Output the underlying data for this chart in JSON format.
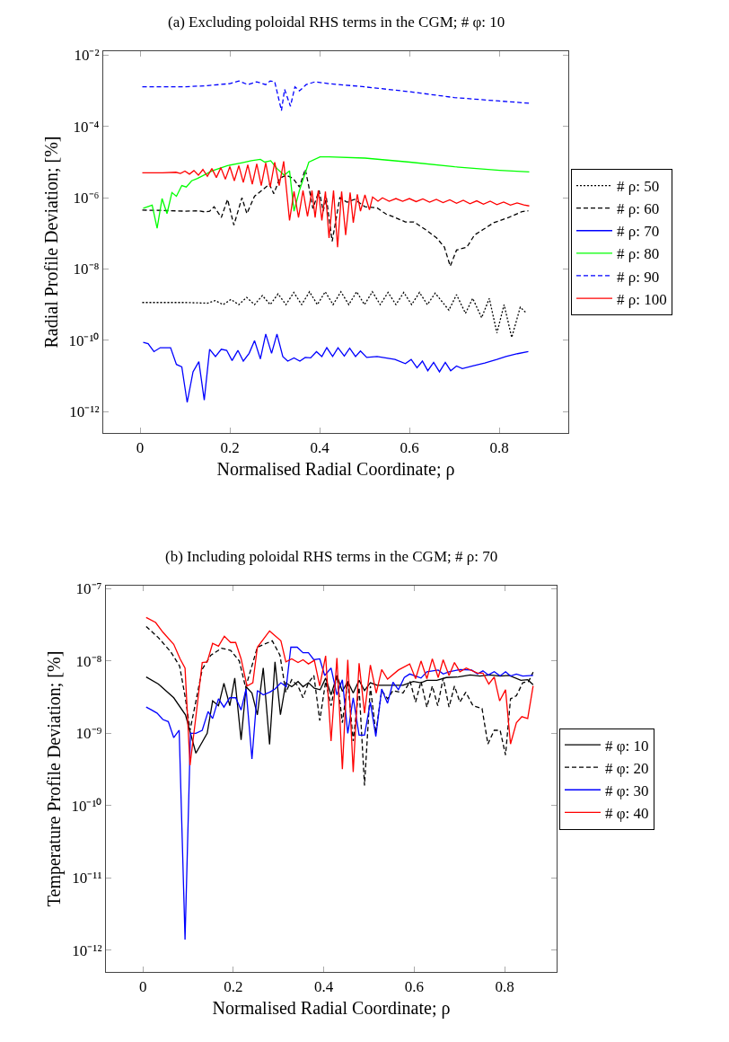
{
  "chart_data": [
    {
      "type": "line",
      "title": "(a) Excluding poloidal RHS terms in the CGM; # φ: 10",
      "xlabel": "Normalised Radial Coordinate; ρ",
      "ylabel": "Radial Profile Deviation; [%]",
      "log": "y",
      "legend": "right",
      "xlim": [
        -0.082,
        0.954
      ],
      "ylim": [
        2.5e-13,
        0.013
      ],
      "xticks": [
        0,
        0.2,
        0.4,
        0.6,
        0.8
      ],
      "yticks": [
        {
          "value": 1e-12,
          "label": "10⁻¹²"
        },
        {
          "value": 1e-10,
          "label": "10⁻¹⁰"
        },
        {
          "value": 1e-08,
          "label": "10⁻⁸"
        },
        {
          "value": 1e-06,
          "label": "10⁻⁶"
        },
        {
          "value": 0.0001,
          "label": "10⁻⁴"
        },
        {
          "value": 0.01,
          "label": "10⁻²"
        }
      ],
      "series": [
        {
          "name": "# ρ: 50",
          "color": "#000000",
          "line_style": "dotted",
          "x": [
            0.005,
            0.05,
            0.1,
            0.15,
            0.1675,
            0.185,
            0.2025,
            0.22,
            0.2375,
            0.255,
            0.2725,
            0.29,
            0.3075,
            0.325,
            0.3425,
            0.36,
            0.3775,
            0.395,
            0.4125,
            0.43,
            0.4475,
            0.465,
            0.4825,
            0.5,
            0.5175,
            0.535,
            0.5525,
            0.57,
            0.5875,
            0.605,
            0.6225,
            0.64,
            0.6575,
            0.688,
            0.705,
            0.725,
            0.741,
            0.761,
            0.778,
            0.795,
            0.811,
            0.828,
            0.847,
            0.86
          ],
          "values": [
            1.15e-09,
            1.15e-09,
            1.15e-09,
            1.1e-09,
            1.3e-09,
            1e-09,
            1.4e-09,
            1e-09,
            1.6e-09,
            1e-09,
            1.8e-09,
            1e-09,
            2e-09,
            1e-09,
            2.2e-09,
            1e-09,
            2.3e-09,
            1e-09,
            2.3e-09,
            1e-09,
            2.3e-09,
            1e-09,
            2.3e-09,
            1e-09,
            2.3e-09,
            1e-09,
            2.2e-09,
            1e-09,
            2.2e-09,
            1e-09,
            2.2e-09,
            1e-09,
            2.1e-09,
            7e-10,
            1.9e-09,
            5.7e-10,
            1.5e-09,
            4.3e-10,
            1.5e-09,
            1.6e-10,
            1e-09,
            1.2e-10,
            8.5e-10,
            5.9e-10
          ]
        },
        {
          "name": "# ρ: 60",
          "color": "#000000",
          "line_style": "dashed",
          "x": [
            0.005,
            0.05,
            0.1,
            0.13,
            0.145,
            0.155,
            0.165,
            0.181,
            0.195,
            0.209,
            0.227,
            0.238,
            0.255,
            0.271,
            0.288,
            0.298,
            0.311,
            0.325,
            0.341,
            0.355,
            0.368,
            0.375,
            0.385,
            0.399,
            0.408,
            0.415,
            0.428,
            0.445,
            0.461,
            0.478,
            0.501,
            0.528,
            0.548,
            0.568,
            0.591,
            0.61,
            0.635,
            0.661,
            0.678,
            0.691,
            0.705,
            0.728,
            0.745,
            0.765,
            0.788,
            0.821,
            0.851,
            0.865
          ],
          "values": [
            4.5e-07,
            4.4e-07,
            4.2e-07,
            4.3e-07,
            4e-07,
            4.2e-07,
            5.6e-07,
            2.8e-07,
            9e-07,
            1.7e-07,
            1e-06,
            3.6e-07,
            1.1e-06,
            1.6e-06,
            2.4e-06,
            1.3e-06,
            3.5e-06,
            4.3e-06,
            3.5e-06,
            2e-06,
            6.3e-06,
            2.4e-06,
            5e-07,
            1.6e-06,
            4.2e-07,
            1e-06,
            6e-08,
            1e-06,
            7.5e-07,
            9e-07,
            5.6e-07,
            5.2e-07,
            3.5e-07,
            2.8e-07,
            2.1e-07,
            2.1e-07,
            1.3e-07,
            7.4e-08,
            4.1e-08,
            1.2e-08,
            3.4e-08,
            4.1e-08,
            9e-08,
            1.3e-07,
            2e-07,
            2.8e-07,
            4.1e-07,
            4.3e-07
          ]
        },
        {
          "name": "# ρ: 70",
          "color": "#0000ff",
          "line_style": "solid",
          "x": [
            0.007,
            0.018,
            0.031,
            0.045,
            0.068,
            0.081,
            0.093,
            0.105,
            0.118,
            0.131,
            0.143,
            0.155,
            0.168,
            0.181,
            0.193,
            0.205,
            0.218,
            0.23,
            0.243,
            0.255,
            0.268,
            0.28,
            0.293,
            0.305,
            0.318,
            0.329,
            0.343,
            0.356,
            0.368,
            0.38,
            0.393,
            0.405,
            0.416,
            0.429,
            0.441,
            0.455,
            0.467,
            0.48,
            0.491,
            0.505,
            0.528,
            0.568,
            0.591,
            0.604,
            0.617,
            0.629,
            0.641,
            0.654,
            0.667,
            0.68,
            0.692,
            0.705,
            0.718,
            0.741,
            0.768,
            0.795,
            0.815,
            0.841,
            0.865
          ],
          "values": [
            8.7e-11,
            8e-11,
            4.8e-11,
            6.2e-11,
            6.2e-11,
            2.1e-11,
            1.8e-11,
            1.8e-12,
            1.3e-11,
            2.5e-11,
            2.1e-12,
            5.6e-11,
            3.5e-11,
            5.6e-11,
            5.2e-11,
            2.7e-11,
            5.2e-11,
            2.6e-11,
            4.3e-11,
            9.8e-11,
            3e-11,
            1.5e-10,
            4.3e-11,
            1.5e-10,
            3.5e-11,
            2.6e-11,
            3.2e-11,
            2.6e-11,
            3.3e-11,
            3.2e-11,
            4.8e-11,
            3.5e-11,
            6.2e-11,
            3.5e-11,
            6.2e-11,
            3.6e-11,
            6e-11,
            3.5e-11,
            5e-11,
            3.3e-11,
            3.5e-11,
            2.9e-11,
            2.2e-11,
            2.9e-11,
            1.7e-11,
            2.6e-11,
            1.4e-11,
            2.4e-11,
            1.3e-11,
            2.4e-11,
            1.4e-11,
            1.9e-11,
            1.6e-11,
            1.9e-11,
            2.3e-11,
            2.9e-11,
            3.5e-11,
            4.2e-11,
            4.8e-11
          ]
        },
        {
          "name": "# ρ: 80",
          "color": "#00ff00",
          "line_style": "solid",
          "x": [
            0.007,
            0.027,
            0.038,
            0.049,
            0.06,
            0.071,
            0.081,
            0.093,
            0.103,
            0.115,
            0.128,
            0.161,
            0.195,
            0.228,
            0.248,
            0.268,
            0.278,
            0.291,
            0.305,
            0.321,
            0.333,
            0.343,
            0.355,
            0.376,
            0.401,
            0.421,
            0.501,
            0.601,
            0.701,
            0.801,
            0.867
          ],
          "values": [
            5.1e-07,
            6.2e-07,
            1.4e-07,
            9.5e-07,
            3.6e-07,
            1.4e-06,
            1.1e-06,
            2.2e-06,
            2e-06,
            3e-06,
            3.5e-06,
            5.7e-06,
            8e-06,
            9.7e-06,
            1.1e-05,
            1.2e-05,
            1e-05,
            1.1e-05,
            6.6e-06,
            4.3e-06,
            5.7e-06,
            4.2e-07,
            1.6e-06,
            1e-05,
            1.4e-05,
            1.4e-05,
            1.3e-05,
            1e-05,
            7.4e-06,
            5.9e-06,
            5.3e-06
          ]
        },
        {
          "name": "# ρ: 90",
          "color": "#0000ff",
          "line_style": "dashed",
          "x": [
            0.005,
            0.1,
            0.15,
            0.2,
            0.22,
            0.24,
            0.26,
            0.28,
            0.29,
            0.3,
            0.315,
            0.322,
            0.335,
            0.345,
            0.355,
            0.37,
            0.39,
            0.42,
            0.5,
            0.6,
            0.7,
            0.8,
            0.867
          ],
          "values": [
            0.0013,
            0.0013,
            0.0014,
            0.0016,
            0.0019,
            0.0015,
            0.0018,
            0.0015,
            0.0019,
            0.0018,
            0.00028,
            0.0011,
            0.00037,
            0.0013,
            0.001,
            0.0015,
            0.0018,
            0.0016,
            0.0013,
            0.00095,
            0.00065,
            0.00052,
            0.00045
          ]
        },
        {
          "name": "# ρ: 100",
          "color": "#ff0000",
          "line_style": "solid",
          "x": [
            0.005,
            0.05,
            0.08,
            0.09,
            0.1,
            0.11,
            0.12,
            0.13,
            0.14,
            0.15,
            0.16,
            0.17,
            0.18,
            0.19,
            0.2,
            0.21,
            0.22,
            0.23,
            0.24,
            0.25,
            0.26,
            0.27,
            0.28,
            0.29,
            0.3,
            0.31,
            0.32,
            0.333,
            0.343,
            0.353,
            0.363,
            0.373,
            0.383,
            0.39,
            0.397,
            0.405,
            0.413,
            0.421,
            0.431,
            0.44,
            0.449,
            0.458,
            0.468,
            0.475,
            0.484,
            0.491,
            0.501,
            0.511,
            0.518,
            0.53,
            0.54,
            0.555,
            0.57,
            0.585,
            0.6,
            0.615,
            0.63,
            0.645,
            0.66,
            0.675,
            0.69,
            0.705,
            0.72,
            0.735,
            0.75,
            0.765,
            0.78,
            0.795,
            0.81,
            0.825,
            0.84,
            0.855,
            0.867
          ],
          "values": [
            5e-06,
            5e-06,
            5.2e-06,
            4.8e-06,
            5.6e-06,
            4.6e-06,
            5.8e-06,
            4.3e-06,
            6.2e-06,
            4e-06,
            6.6e-06,
            3.7e-06,
            7e-06,
            3.3e-06,
            7.5e-06,
            3e-06,
            8e-06,
            2.7e-06,
            8.5e-06,
            2.4e-06,
            9e-06,
            2.2e-06,
            9.5e-06,
            2e-06,
            1e-05,
            2.2e-06,
            1.05e-05,
            2.3e-07,
            1.5e-06,
            2.8e-07,
            1.6e-06,
            3e-07,
            1.6e-06,
            2.8e-07,
            1.6e-06,
            2.3e-07,
            1.5e-06,
            7.4e-08,
            1.6e-06,
            4.1e-08,
            1.5e-06,
            9e-08,
            1.4e-06,
            2e-07,
            1.25e-06,
            4.2e-07,
            1.2e-06,
            4.6e-07,
            1.05e-06,
            8e-07,
            1e-06,
            8e-07,
            9.5e-07,
            8e-07,
            9.5e-07,
            7.8e-07,
            9.3e-07,
            7.5e-07,
            9e-07,
            7.3e-07,
            8.8e-07,
            7e-07,
            8.5e-07,
            6.8e-07,
            8.2e-07,
            6.6e-07,
            8e-07,
            6.4e-07,
            7.6e-07,
            6.2e-07,
            7.2e-07,
            6.3e-07,
            5.9e-07
          ]
        }
      ]
    },
    {
      "type": "line",
      "title": "(b) Including poloidal RHS terms in the CGM; # ρ: 70",
      "xlabel": "Normalised Radial Coordinate; ρ",
      "ylabel": "Temperature Profile Deviation; [%]",
      "log": "y",
      "legend": "right",
      "xlim": [
        -0.082,
        0.915
      ],
      "ylim": [
        5e-13,
        1.1e-07
      ],
      "xticks": [
        0,
        0.2,
        0.4,
        0.6,
        0.8
      ],
      "yticks": [
        {
          "value": 1e-12,
          "label": "10⁻¹²"
        },
        {
          "value": 1e-11,
          "label": "10⁻¹¹"
        },
        {
          "value": 1e-10,
          "label": "10⁻¹⁰"
        },
        {
          "value": 1e-09,
          "label": "10⁻⁹"
        },
        {
          "value": 1e-08,
          "label": "10⁻⁸"
        },
        {
          "value": 1e-07,
          "label": "10⁻⁷"
        }
      ],
      "series": [
        {
          "name": "# φ: 10",
          "color": "#000000",
          "line_style": "solid",
          "x": [
            0.007,
            0.034,
            0.068,
            0.094,
            0.117,
            0.142,
            0.154,
            0.167,
            0.179,
            0.192,
            0.203,
            0.217,
            0.228,
            0.241,
            0.253,
            0.266,
            0.28,
            0.292,
            0.304,
            0.316,
            0.329,
            0.343,
            0.354,
            0.366,
            0.379,
            0.392,
            0.404,
            0.416,
            0.429,
            0.441,
            0.453,
            0.465,
            0.478,
            0.49,
            0.503,
            0.518,
            0.55,
            0.575,
            0.598,
            0.615,
            0.628,
            0.65,
            0.671,
            0.697,
            0.724,
            0.745,
            0.767,
            0.79,
            0.81,
            0.836,
            0.851,
            0.863
          ],
          "values": [
            6e-09,
            4.8e-09,
            3.1e-09,
            1.8e-09,
            5.3e-10,
            1e-09,
            2.8e-09,
            2.4e-09,
            4.9e-09,
            2.4e-09,
            5.8e-09,
            8.1e-10,
            4.4e-09,
            3.6e-09,
            1.8e-09,
            8e-09,
            7e-10,
            9.7e-09,
            1.8e-09,
            5e-09,
            4.4e-09,
            5.2e-09,
            4.4e-09,
            5e-09,
            4.2e-09,
            4e-09,
            5.8e-09,
            3.4e-09,
            6.3e-09,
            3.8e-09,
            5.2e-09,
            3.6e-09,
            5.4e-09,
            3.9e-09,
            5e-09,
            4.6e-09,
            4.6e-09,
            4.6e-09,
            5.2e-09,
            5e-09,
            5.4e-09,
            5.4e-09,
            5.9e-09,
            6e-09,
            6.4e-09,
            6.2e-09,
            6.4e-09,
            6.2e-09,
            6.3e-09,
            5.4e-09,
            5.5e-09,
            4.7e-09
          ]
        },
        {
          "name": "# φ: 20",
          "color": "#000000",
          "line_style": "dashed",
          "x": [
            0.007,
            0.034,
            0.061,
            0.081,
            0.094,
            0.104,
            0.115,
            0.131,
            0.15,
            0.174,
            0.194,
            0.213,
            0.227,
            0.253,
            0.286,
            0.303,
            0.316,
            0.329,
            0.343,
            0.354,
            0.366,
            0.378,
            0.391,
            0.404,
            0.416,
            0.429,
            0.441,
            0.453,
            0.465,
            0.478,
            0.49,
            0.503,
            0.515,
            0.528,
            0.541,
            0.553,
            0.575,
            0.591,
            0.603,
            0.615,
            0.628,
            0.64,
            0.652,
            0.664,
            0.677,
            0.689,
            0.701,
            0.714,
            0.73,
            0.75,
            0.763,
            0.777,
            0.79,
            0.802,
            0.813,
            0.826,
            0.84,
            0.853,
            0.863
          ],
          "values": [
            3e-08,
            2.1e-08,
            1.35e-08,
            8.5e-09,
            3e-09,
            1.1e-09,
            2.4e-09,
            7.7e-09,
            1.2e-08,
            1.5e-08,
            1.4e-08,
            1e-08,
            4.3e-09,
            1.55e-08,
            1.9e-08,
            1.2e-08,
            3.7e-09,
            5.5e-09,
            4.5e-09,
            3.1e-09,
            5e-09,
            6.3e-09,
            1.5e-09,
            5.2e-09,
            2.4e-09,
            6.3e-09,
            1.4e-09,
            5.2e-09,
            7.8e-10,
            4.3e-09,
            1.9e-10,
            4.5e-09,
            1e-09,
            3.9e-09,
            3e-09,
            3.9e-09,
            3.6e-09,
            5.2e-09,
            2.7e-09,
            5.2e-09,
            2.3e-09,
            4.5e-09,
            2.4e-09,
            5.8e-09,
            2.3e-09,
            4.5e-09,
            2.7e-09,
            3.7e-09,
            2.4e-09,
            2.2e-09,
            7.1e-10,
            1.1e-09,
            1.1e-09,
            5e-10,
            3e-09,
            3.3e-09,
            5e-09,
            5.2e-09,
            7e-09
          ]
        },
        {
          "name": "# φ: 30",
          "color": "#0000ff",
          "line_style": "solid",
          "x": [
            0.007,
            0.019,
            0.031,
            0.044,
            0.056,
            0.068,
            0.08,
            0.093,
            0.105,
            0.117,
            0.131,
            0.144,
            0.154,
            0.167,
            0.179,
            0.192,
            0.205,
            0.217,
            0.228,
            0.241,
            0.253,
            0.266,
            0.28,
            0.292,
            0.305,
            0.317,
            0.327,
            0.341,
            0.354,
            0.366,
            0.378,
            0.391,
            0.402,
            0.416,
            0.429,
            0.441,
            0.453,
            0.465,
            0.478,
            0.49,
            0.503,
            0.515,
            0.528,
            0.541,
            0.553,
            0.565,
            0.578,
            0.59,
            0.615,
            0.628,
            0.653,
            0.664,
            0.677,
            0.701,
            0.727,
            0.74,
            0.752,
            0.764,
            0.777,
            0.79,
            0.802,
            0.813,
            0.826,
            0.84,
            0.863
          ],
          "values": [
            2.3e-09,
            2.1e-09,
            1.9e-09,
            1.55e-09,
            1.45e-09,
            8.7e-10,
            1.1e-09,
            1.4e-12,
            1e-09,
            1e-09,
            1.1e-09,
            2e-09,
            1.6e-09,
            3e-09,
            2.3e-09,
            3.1e-09,
            3.1e-09,
            2.1e-09,
            4.1e-09,
            4.4e-10,
            3.9e-09,
            3.4e-09,
            3.7e-09,
            4.1e-09,
            5e-09,
            4.4e-09,
            1.55e-08,
            1.55e-08,
            1.3e-08,
            1.3e-08,
            1.04e-08,
            1.07e-08,
            6.3e-09,
            8e-09,
            3.4e-09,
            5.5e-09,
            1e-09,
            3.1e-09,
            9.4e-10,
            9.4e-10,
            2.7e-09,
            9e-10,
            4.1e-09,
            2.6e-09,
            5.1e-09,
            4e-09,
            5.9e-09,
            6.6e-09,
            5.8e-09,
            7.1e-09,
            7.5e-09,
            6.6e-09,
            7.1e-09,
            7.6e-09,
            7.5e-09,
            6.6e-09,
            7.3e-09,
            6.4e-09,
            7.1e-09,
            6.2e-09,
            7.1e-09,
            6.2e-09,
            6.6e-09,
            6.2e-09,
            6.3e-09
          ]
        },
        {
          "name": "# φ: 40",
          "color": "#ff0000",
          "line_style": "solid",
          "x": [
            0.007,
            0.028,
            0.044,
            0.068,
            0.082,
            0.093,
            0.104,
            0.117,
            0.131,
            0.142,
            0.154,
            0.167,
            0.18,
            0.194,
            0.205,
            0.217,
            0.23,
            0.243,
            0.253,
            0.28,
            0.305,
            0.316,
            0.329,
            0.343,
            0.354,
            0.366,
            0.379,
            0.391,
            0.404,
            0.416,
            0.429,
            0.441,
            0.453,
            0.465,
            0.478,
            0.49,
            0.503,
            0.516,
            0.528,
            0.541,
            0.565,
            0.59,
            0.603,
            0.615,
            0.628,
            0.64,
            0.653,
            0.664,
            0.677,
            0.689,
            0.701,
            0.715,
            0.74,
            0.752,
            0.765,
            0.777,
            0.789,
            0.802,
            0.813,
            0.826,
            0.838,
            0.851,
            0.863
          ],
          "values": [
            4e-08,
            3.4e-08,
            2.5e-08,
            1.7e-08,
            1.07e-08,
            8e-09,
            3.6e-10,
            1.7e-09,
            9.5e-09,
            9.7e-09,
            1.75e-08,
            1.6e-08,
            2.2e-08,
            1.8e-08,
            1.8e-08,
            1.07e-08,
            4.5e-09,
            5e-09,
            1.55e-08,
            2.6e-08,
            1.9e-08,
            9.7e-09,
            1.07e-08,
            9.5e-09,
            1.04e-08,
            9.1e-09,
            1.02e-08,
            4.5e-09,
            1.18e-08,
            7.8e-10,
            1.1e-08,
            3.2e-10,
            1.04e-08,
            2.9e-10,
            9.3e-09,
            1.9e-09,
            8.8e-09,
            3.6e-09,
            7.6e-09,
            5.6e-09,
            7.5e-09,
            9.1e-09,
            5.7e-09,
            1e-08,
            5.7e-09,
            1.07e-08,
            5.9e-09,
            1.04e-08,
            6.3e-09,
            9.5e-09,
            7.1e-09,
            8e-09,
            6.8e-09,
            6.8e-09,
            4.8e-09,
            6e-09,
            2.8e-09,
            4e-09,
            7.1e-10,
            1.4e-09,
            1.7e-09,
            1.6e-09,
            4.5e-09
          ]
        }
      ]
    }
  ]
}
